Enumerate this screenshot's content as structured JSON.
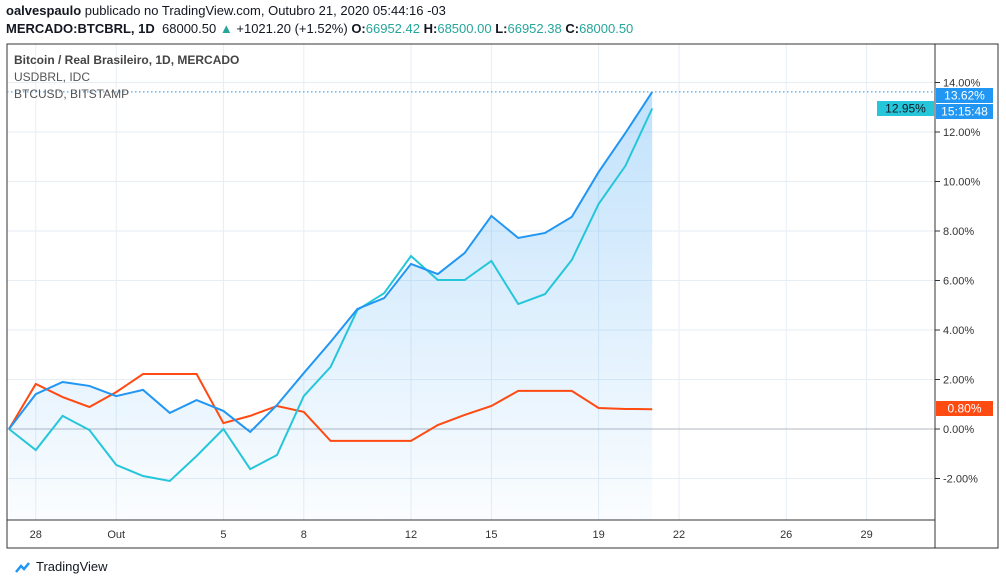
{
  "header": {
    "author": "oalvespaulo",
    "published": "publicado no TradingView.com, Outubro 21, 2020 05:44:16 -03",
    "symbol": "MERCADO:BTCBRL, 1D",
    "price": "68000.50",
    "change": "+1021.20 (+1.52%)",
    "o_label": "O:",
    "o": "66952.42",
    "h_label": "H:",
    "h": "68500.00",
    "l_label": "L:",
    "l": "66952.38",
    "c_label": "C:",
    "c": "68000.50"
  },
  "chart_data": {
    "type": "line",
    "legend": [
      "Bitcoin / Real Brasileiro, 1D, MERCADO",
      "USDBRL, IDC",
      "BTCUSD, BITSTAMP"
    ],
    "x": [
      "Sep 27",
      "Sep 28",
      "Sep 29",
      "Sep 30",
      "Oct 1",
      "Oct 2",
      "Oct 3",
      "Oct 4",
      "Oct 5",
      "Oct 6",
      "Oct 7",
      "Oct 8",
      "Oct 9",
      "Oct 10",
      "Oct 11",
      "Oct 12",
      "Oct 13",
      "Oct 14",
      "Oct 15",
      "Oct 16",
      "Oct 17",
      "Oct 18",
      "Oct 19",
      "Oct 20",
      "Oct 21"
    ],
    "x_ticks": [
      {
        "day": 1,
        "label": "28"
      },
      {
        "day": 4,
        "label": "Out"
      },
      {
        "day": 8,
        "label": "5"
      },
      {
        "day": 11,
        "label": "8"
      },
      {
        "day": 15,
        "label": "12"
      },
      {
        "day": 18,
        "label": "15"
      },
      {
        "day": 22,
        "label": "19"
      },
      {
        "day": 25,
        "label": "22"
      },
      {
        "day": 29,
        "label": "26"
      },
      {
        "day": 32,
        "label": "29"
      }
    ],
    "y_ticks": [
      "14.00%",
      "12.00%",
      "10.00%",
      "8.00%",
      "6.00%",
      "4.00%",
      "2.00%",
      "0.00%",
      "-2.00%"
    ],
    "ylim": [
      -3.7,
      15.5
    ],
    "grid": true,
    "series": [
      {
        "name": "Bitcoin / Real Brasileiro, 1D, MERCADO",
        "color": "#2196f3",
        "last_label": "13.62%",
        "time_label": "15:15:48",
        "values": [
          0,
          1.41,
          1.9,
          1.74,
          1.33,
          1.58,
          0.65,
          1.17,
          0.73,
          -0.12,
          0.97,
          2.26,
          3.52,
          4.85,
          5.29,
          6.67,
          6.26,
          7.11,
          8.61,
          7.72,
          7.92,
          8.57,
          10.38,
          11.96,
          13.62
        ]
      },
      {
        "name": "USDBRL, IDC",
        "color": "#ff4a12",
        "last_label": "0.80%",
        "values": [
          0,
          1.82,
          1.29,
          0.89,
          1.49,
          2.22,
          2.22,
          2.22,
          0.24,
          0.53,
          0.93,
          0.69,
          -0.48,
          -0.48,
          -0.48,
          -0.48,
          0.16,
          0.57,
          0.93,
          1.54,
          1.54,
          1.54,
          0.85,
          0.81,
          0.8
        ]
      },
      {
        "name": "BTCUSD, BITSTAMP",
        "color": "#26c6da",
        "last_label": "12.95%",
        "values": [
          0,
          -0.85,
          0.53,
          -0.04,
          -1.45,
          -1.9,
          -2.1,
          -1.09,
          0,
          -1.62,
          -1.05,
          1.33,
          2.51,
          4.81,
          5.49,
          6.99,
          6.02,
          6.02,
          6.79,
          5.05,
          5.45,
          6.83,
          9.09,
          10.63,
          12.95
        ]
      }
    ]
  },
  "footer": {
    "brand": "TradingView"
  }
}
